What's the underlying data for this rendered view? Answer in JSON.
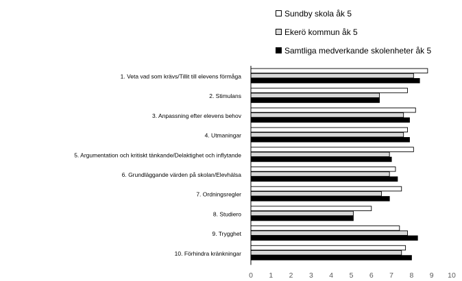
{
  "chart_data": {
    "type": "bar",
    "orientation": "horizontal",
    "categories": [
      "1. Veta vad som krävs/Tillit till elevens förmåga",
      "2. Stimulans",
      "3. Anpassning efter elevens behov",
      "4. Utmaningar",
      "5. Argumentation och kritiskt tänkande/Delaktighet och inflytande",
      "6. Grundläggande värden på skolan/Elevhälsa",
      "7. Ordningsregler",
      "8. Studiero",
      "9. Trygghet",
      "10. Förhindra kränkningar"
    ],
    "series": [
      {
        "name": "Sundby skola åk 5",
        "color": "#ffffff",
        "values": [
          8.8,
          7.8,
          8.2,
          7.8,
          8.1,
          7.2,
          7.5,
          6.0,
          7.4,
          7.7
        ]
      },
      {
        "name": "Ekerö kommun åk 5",
        "color": "#d9d9d9",
        "values": [
          8.1,
          6.4,
          7.6,
          7.6,
          6.9,
          6.9,
          6.5,
          5.1,
          7.8,
          7.5
        ]
      },
      {
        "name": "Samtliga medverkande skolenheter åk 5",
        "color": "#000000",
        "values": [
          8.4,
          6.4,
          7.9,
          7.9,
          7.0,
          7.3,
          6.9,
          5.1,
          8.3,
          8.0
        ]
      }
    ],
    "xlim": [
      0,
      10
    ],
    "xticks": [
      "0",
      "1",
      "2",
      "3",
      "4",
      "5",
      "6",
      "7",
      "8",
      "9",
      "10"
    ],
    "legend_position": "top-right",
    "grid": false
  }
}
